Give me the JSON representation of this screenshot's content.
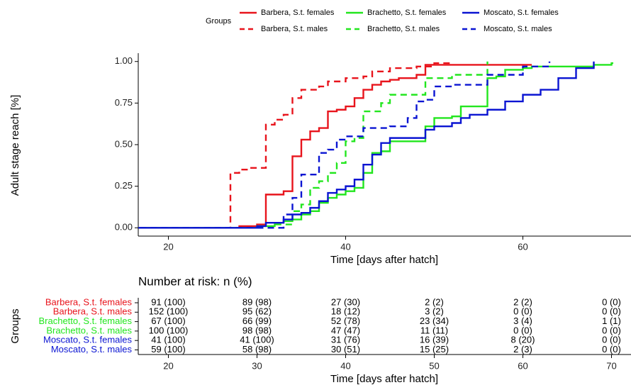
{
  "chart_data": [
    {
      "type": "step",
      "x_label": "Time [days after hatch]",
      "y_label": "Adult stage reach [%]",
      "legend_title": "Groups",
      "legend_position": "top",
      "xlim": [
        16.6,
        72.2
      ],
      "ylim": [
        -0.05,
        1.05
      ],
      "xticks": [
        20,
        40,
        60
      ],
      "yticks": [
        {
          "value": 0,
          "label": "0.00"
        },
        {
          "value": 0.25,
          "label": "0.25"
        },
        {
          "value": 0.5,
          "label": "0.50"
        },
        {
          "value": 0.75,
          "label": "0.75"
        },
        {
          "value": 1,
          "label": "1.00"
        }
      ],
      "series": [
        {
          "name": "Barbera, S.t. females",
          "color": "#e8141c",
          "dashed": false,
          "x": [
            0,
            28,
            30,
            31,
            33,
            34,
            35,
            36,
            37,
            38,
            39,
            40,
            41,
            42,
            43,
            44,
            45,
            46,
            48,
            49,
            61
          ],
          "values": [
            0,
            0.01,
            0.02,
            0.2,
            0.22,
            0.43,
            0.53,
            0.58,
            0.6,
            0.7,
            0.71,
            0.73,
            0.78,
            0.83,
            0.86,
            0.88,
            0.89,
            0.9,
            0.92,
            0.98,
            0.98
          ]
        },
        {
          "name": "Barbera, S.t. males",
          "color": "#e8141c",
          "dashed": true,
          "x": [
            0,
            27,
            28,
            29,
            31,
            32,
            33,
            34,
            35,
            37,
            38,
            40,
            42,
            43,
            45,
            48,
            50,
            52
          ],
          "values": [
            0,
            0.33,
            0.35,
            0.36,
            0.62,
            0.65,
            0.68,
            0.78,
            0.83,
            0.85,
            0.88,
            0.9,
            0.91,
            0.94,
            0.96,
            0.97,
            0.99,
            1.0
          ]
        },
        {
          "name": "Brachetto, S.t. females",
          "color": "#22e61e",
          "dashed": false,
          "x": [
            0,
            30,
            32,
            33,
            34,
            35,
            36,
            37,
            38,
            39,
            40,
            41,
            42,
            43,
            44,
            45,
            49,
            50,
            52,
            53,
            56,
            57,
            58,
            60,
            61,
            68,
            70,
            70.2
          ],
          "values": [
            0,
            0.01,
            0.03,
            0.04,
            0.05,
            0.08,
            0.1,
            0.15,
            0.18,
            0.2,
            0.22,
            0.24,
            0.33,
            0.45,
            0.46,
            0.52,
            0.61,
            0.66,
            0.67,
            0.73,
            0.9,
            0.91,
            0.95,
            0.96,
            0.97,
            0.98,
            0.99,
            0.99
          ]
        },
        {
          "name": "Brachetto, S.t. males",
          "color": "#22e61e",
          "dashed": true,
          "x": [
            0,
            32,
            34,
            35,
            36,
            37,
            38,
            39,
            40,
            41,
            42,
            44,
            45,
            49,
            52,
            56
          ],
          "values": [
            0,
            0.02,
            0.1,
            0.14,
            0.24,
            0.28,
            0.33,
            0.39,
            0.52,
            0.54,
            0.7,
            0.75,
            0.8,
            0.9,
            0.92,
            1.0
          ]
        },
        {
          "name": "Moscato, S.t. females",
          "color": "#0a14d2",
          "dashed": false,
          "x": [
            0,
            30,
            31,
            33,
            34,
            35,
            36,
            37,
            38,
            39,
            40,
            41,
            42,
            43,
            44,
            45,
            49,
            50,
            52,
            53,
            54,
            56,
            58,
            60,
            62,
            64,
            66,
            68
          ],
          "values": [
            0,
            0.01,
            0.03,
            0.05,
            0.08,
            0.09,
            0.12,
            0.16,
            0.21,
            0.23,
            0.25,
            0.29,
            0.38,
            0.44,
            0.51,
            0.54,
            0.59,
            0.61,
            0.63,
            0.66,
            0.68,
            0.71,
            0.76,
            0.8,
            0.83,
            0.9,
            0.96,
            1.0
          ]
        },
        {
          "name": "Moscato, S.t. males",
          "color": "#0a14d2",
          "dashed": true,
          "x": [
            0,
            33,
            34,
            35,
            37,
            38,
            39,
            40,
            42,
            45,
            47,
            48,
            49,
            50,
            52,
            56,
            60,
            63
          ],
          "values": [
            0,
            0.08,
            0.18,
            0.32,
            0.45,
            0.47,
            0.53,
            0.55,
            0.6,
            0.61,
            0.66,
            0.76,
            0.77,
            0.85,
            0.86,
            0.92,
            0.97,
            1.0
          ]
        }
      ]
    },
    {
      "type": "risk_table",
      "title": "Number at risk: n (%)",
      "x_label": "Time [days after hatch]",
      "y_label": "Groups",
      "xlim": [
        16.6,
        72.2
      ],
      "xticks": [
        20,
        30,
        40,
        50,
        60,
        70
      ],
      "rows": [
        {
          "name": "Barbera, S.t. females",
          "color": "#e8141c",
          "values": [
            "91 (100)",
            "89 (98)",
            "27 (30)",
            "2 (2)",
            "2 (2)",
            "0 (0)"
          ]
        },
        {
          "name": "Barbera, S.t. males",
          "color": "#e8141c",
          "values": [
            "152 (100)",
            "95 (62)",
            "18 (12)",
            "3 (2)",
            "0 (0)",
            "0 (0)"
          ]
        },
        {
          "name": "Brachetto, S.t. females",
          "color": "#22e61e",
          "values": [
            "67 (100)",
            "66 (99)",
            "52 (78)",
            "23 (34)",
            "3 (4)",
            "1 (1)"
          ]
        },
        {
          "name": "Brachetto, S.t. males",
          "color": "#22e61e",
          "values": [
            "100 (100)",
            "98 (98)",
            "47 (47)",
            "11 (11)",
            "0 (0)",
            "0 (0)"
          ]
        },
        {
          "name": "Moscato, S.t. females",
          "color": "#0a14d2",
          "values": [
            "41 (100)",
            "41 (100)",
            "31 (76)",
            "16 (39)",
            "8 (20)",
            "0 (0)"
          ]
        },
        {
          "name": "Moscato, S.t. males",
          "color": "#0a14d2",
          "values": [
            "59 (100)",
            "58 (98)",
            "30 (51)",
            "15 (25)",
            "2 (3)",
            "0 (0)"
          ]
        }
      ]
    }
  ]
}
